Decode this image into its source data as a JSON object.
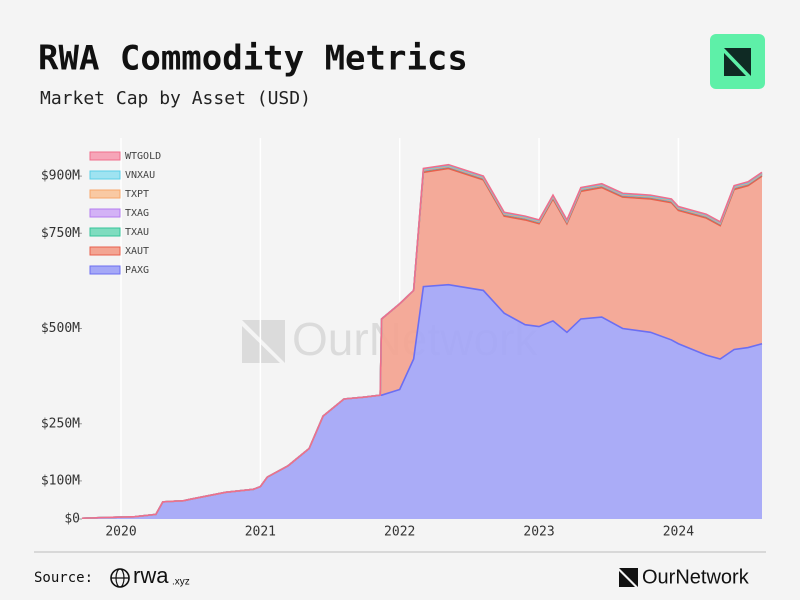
{
  "chart_data": {
    "type": "stacked-area",
    "title": "RWA Commodity Metrics",
    "subtitle": "Market Cap by Asset (USD)",
    "watermark": "OurNetwork",
    "source_label": "Source:",
    "source_name": "rwa",
    "source_suffix": ".xyz",
    "footer_brand": "OurNetwork",
    "x": [
      2019.72,
      2019.9,
      2020.1,
      2020.25,
      2020.3,
      2020.45,
      2020.5,
      2020.75,
      2020.95,
      2021.0,
      2021.05,
      2021.2,
      2021.35,
      2021.45,
      2021.6,
      2021.75,
      2021.86,
      2021.87,
      2022.0,
      2022.1,
      2022.17,
      2022.35,
      2022.6,
      2022.75,
      2022.9,
      2023.0,
      2023.1,
      2023.2,
      2023.3,
      2023.45,
      2023.6,
      2023.8,
      2023.95,
      2024.0,
      2024.2,
      2024.3,
      2024.4,
      2024.5,
      2024.6
    ],
    "series": [
      {
        "name": "PAXG",
        "color": "#6b6ef2",
        "fill": "#a5a8f7",
        "values": [
          2,
          4,
          6,
          12,
          45,
          48,
          52,
          70,
          78,
          85,
          110,
          140,
          185,
          270,
          315,
          320,
          325,
          325,
          340,
          420,
          610,
          615,
          600,
          540,
          510,
          505,
          520,
          490,
          525,
          530,
          500,
          490,
          470,
          460,
          430,
          420,
          445,
          450,
          460
        ]
      },
      {
        "name": "XAUT",
        "color": "#e8604c",
        "fill": "#f3a593",
        "values": [
          0,
          0,
          0,
          0,
          0,
          0,
          0,
          0,
          0,
          0,
          0,
          0,
          0,
          0,
          0,
          0,
          0,
          200,
          225,
          180,
          300,
          305,
          290,
          255,
          275,
          270,
          320,
          285,
          335,
          340,
          345,
          350,
          360,
          350,
          360,
          350,
          420,
          425,
          440
        ]
      },
      {
        "name": "TXAU",
        "color": "#35c49a",
        "fill": "#7fdcbf",
        "values": [
          0,
          0,
          0,
          0,
          0,
          0,
          0,
          0,
          0,
          0,
          0,
          0,
          0,
          0,
          0,
          0,
          0,
          0,
          0,
          0,
          4,
          4,
          4,
          4,
          4,
          4,
          4,
          4,
          4,
          4,
          4,
          4,
          4,
          4,
          4,
          4,
          4,
          4,
          4
        ]
      },
      {
        "name": "TXAG",
        "color": "#b57cf0",
        "fill": "#d3b2f6",
        "values": [
          0,
          0,
          0,
          0,
          0,
          0,
          0,
          0,
          0,
          0,
          0,
          0,
          0,
          0,
          0,
          0,
          0,
          0,
          0,
          0,
          1,
          1,
          1,
          1,
          1,
          1,
          1,
          1,
          1,
          1,
          1,
          1,
          1,
          1,
          1,
          1,
          1,
          1,
          1
        ]
      },
      {
        "name": "TXPT",
        "color": "#f7a86b",
        "fill": "#f9c9a3",
        "values": [
          0,
          0,
          0,
          0,
          0,
          0,
          0,
          0,
          0,
          0,
          0,
          0,
          0,
          0,
          0,
          0,
          0,
          0,
          0,
          0,
          1,
          1,
          1,
          1,
          1,
          1,
          1,
          1,
          1,
          1,
          1,
          1,
          1,
          1,
          1,
          1,
          1,
          1,
          1
        ]
      },
      {
        "name": "VNXAU",
        "color": "#5bcfe8",
        "fill": "#9fe3f1",
        "values": [
          0,
          0,
          0,
          0,
          0,
          0,
          0,
          0,
          0,
          0,
          0,
          0,
          0,
          0,
          0,
          0,
          0,
          0,
          0,
          0,
          2,
          2,
          2,
          2,
          2,
          2,
          2,
          2,
          2,
          2,
          2,
          2,
          2,
          2,
          2,
          2,
          2,
          2,
          2
        ]
      },
      {
        "name": "WTGOLD",
        "color": "#f06e8c",
        "fill": "#f6a5b8",
        "values": [
          0,
          0,
          0,
          0,
          0,
          0,
          0,
          0,
          0,
          0,
          0,
          0,
          0,
          0,
          0,
          0,
          0,
          0,
          0,
          0,
          2,
          2,
          2,
          2,
          2,
          2,
          2,
          2,
          2,
          2,
          2,
          2,
          2,
          2,
          2,
          2,
          2,
          2,
          2
        ]
      }
    ],
    "xlim": [
      2019.72,
      2024.6
    ],
    "xticks": [
      2020,
      2021,
      2022,
      2023,
      2024
    ],
    "ylim": [
      0,
      1000
    ],
    "yticks": [
      {
        "value": 0,
        "label": "$0"
      },
      {
        "value": 100,
        "label": "$100M"
      },
      {
        "value": 250,
        "label": "$250M"
      },
      {
        "value": 500,
        "label": "$500M"
      },
      {
        "value": 750,
        "label": "$750M"
      },
      {
        "value": 900,
        "label": "$900M"
      }
    ],
    "grid": "x",
    "legend": "top-left"
  }
}
